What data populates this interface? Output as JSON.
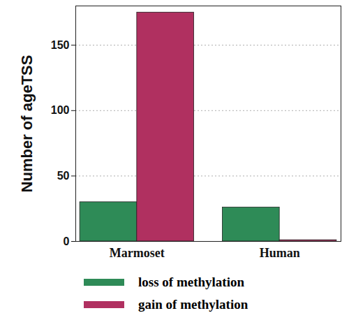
{
  "chart_data": {
    "type": "bar",
    "categories": [
      "Marmoset",
      "Human"
    ],
    "series": [
      {
        "name": "loss of methylation",
        "color": "#2e8b57",
        "values": [
          30,
          26
        ]
      },
      {
        "name": "gain of methylation",
        "color": "#b03060",
        "values": [
          175,
          1
        ]
      }
    ],
    "ylabel": "Number of ageTSS",
    "ylim": [
      0,
      180
    ],
    "yticks": [
      0,
      50,
      100,
      150
    ],
    "grid": true,
    "legend": "bottom"
  }
}
